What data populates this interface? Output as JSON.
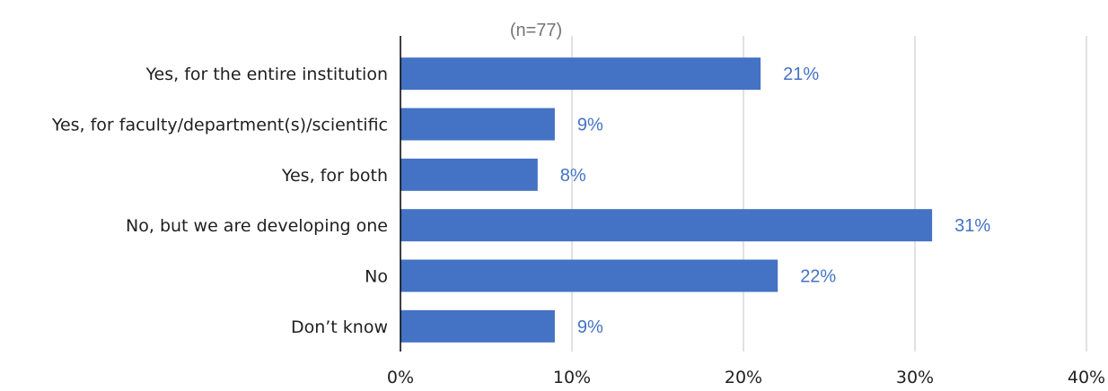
{
  "chart_data": {
    "type": "bar",
    "orientation": "horizontal",
    "title": "",
    "subtitle": "(n=77)",
    "categories": [
      "Yes, for the entire institution",
      "Yes, for faculty/department(s)/scientific",
      "Yes, for both",
      "No, but we are developing one",
      "No",
      "Don’t know"
    ],
    "values": [
      21,
      9,
      8,
      31,
      22,
      9
    ],
    "data_labels": [
      "21%",
      "9%",
      "8%",
      "31%",
      "22%",
      "9%"
    ],
    "xlim": [
      0,
      40
    ],
    "x_ticks": [
      0,
      10,
      20,
      30,
      40
    ],
    "x_tick_labels": [
      "0%",
      "10%",
      "20%",
      "30%",
      "40%"
    ],
    "xlabel": "",
    "ylabel": "",
    "grid": "vertical",
    "legend": "none",
    "colors": {
      "bar": "#4472c4",
      "data_label": "#4472c4",
      "grid": "#d9d9d9",
      "axis": "#000000",
      "text": "#1f1f1f",
      "subtitle": "#757575"
    }
  }
}
